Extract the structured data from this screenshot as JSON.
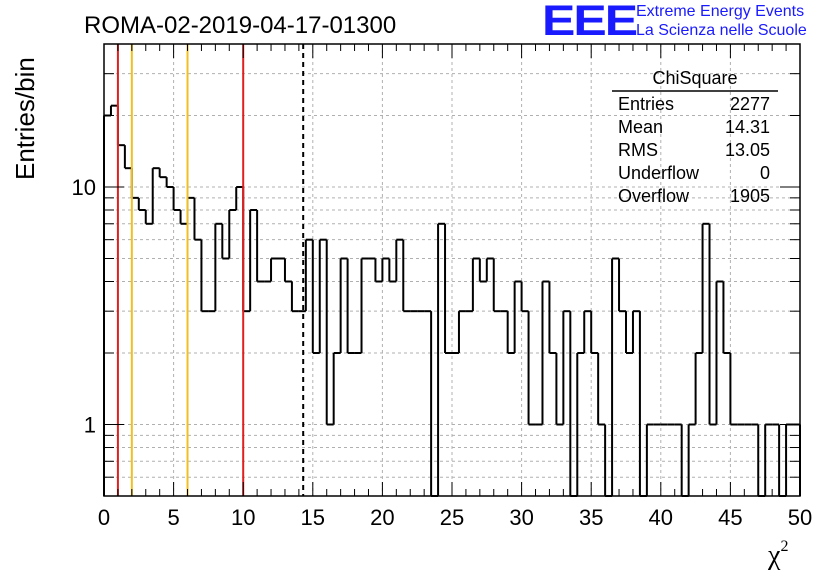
{
  "header": {
    "title": "ROMA-02-2019-04-17-01300",
    "logo_mark": "EEE",
    "logo_line1": "Extreme Energy Events",
    "logo_line2": "La Scienza nelle Scuole"
  },
  "stats": {
    "name": "ChiSquare",
    "rows": [
      {
        "key": "Entries",
        "value": "2277"
      },
      {
        "key": "Mean",
        "value": "14.31"
      },
      {
        "key": "RMS",
        "value": "13.05"
      },
      {
        "key": "Underflow",
        "value": "0"
      },
      {
        "key": "Overflow",
        "value": "1905"
      }
    ]
  },
  "chart_data": {
    "type": "histogram",
    "title": "ROMA-02-2019-04-17-01300",
    "ylabel": "Entries/bin",
    "xlabel": "χ",
    "xlabel_sup": "2",
    "xlim": [
      0,
      50
    ],
    "ylim": [
      0.5,
      40
    ],
    "yscale": "log",
    "grid": true,
    "bin_width": 0.5,
    "x_ticks": [
      0,
      5,
      10,
      15,
      20,
      25,
      30,
      35,
      40,
      45,
      50
    ],
    "x_tick_labels": [
      "0",
      "5",
      "10",
      "15",
      "20",
      "25",
      "30",
      "35",
      "40",
      "45",
      "50"
    ],
    "y_tick_labels": [
      {
        "value": 1,
        "label": "1"
      },
      {
        "value": 10,
        "label": "10"
      }
    ],
    "values": [
      20,
      22,
      15,
      12,
      9,
      8,
      7,
      12,
      11,
      10,
      8,
      7,
      9,
      6,
      3,
      3,
      7,
      5,
      8,
      10,
      3,
      8,
      4,
      4,
      5,
      5,
      4,
      3,
      3,
      6,
      2,
      6,
      1,
      2,
      5,
      2,
      2,
      5,
      5,
      4,
      5,
      4,
      6,
      3,
      3,
      3,
      3,
      0,
      7,
      2,
      2,
      3,
      3,
      5,
      4,
      5,
      3,
      3,
      2,
      4,
      3,
      1,
      1,
      4,
      2,
      1,
      3,
      0,
      2,
      3,
      2,
      1,
      0,
      5,
      3,
      2,
      3,
      0,
      1,
      1,
      1,
      1,
      1,
      0,
      1,
      2,
      7,
      1,
      4,
      2,
      1,
      1,
      1,
      1,
      0,
      1,
      1,
      0,
      1,
      1
    ],
    "vertical_lines": [
      {
        "x": 1,
        "color": "#e02020",
        "style": "solid"
      },
      {
        "x": 2,
        "color": "#f0c020",
        "style": "solid"
      },
      {
        "x": 6,
        "color": "#f0c020",
        "style": "solid"
      },
      {
        "x": 10,
        "color": "#e02020",
        "style": "solid"
      },
      {
        "x": 14.31,
        "color": "#000000",
        "style": "dashed"
      }
    ]
  }
}
